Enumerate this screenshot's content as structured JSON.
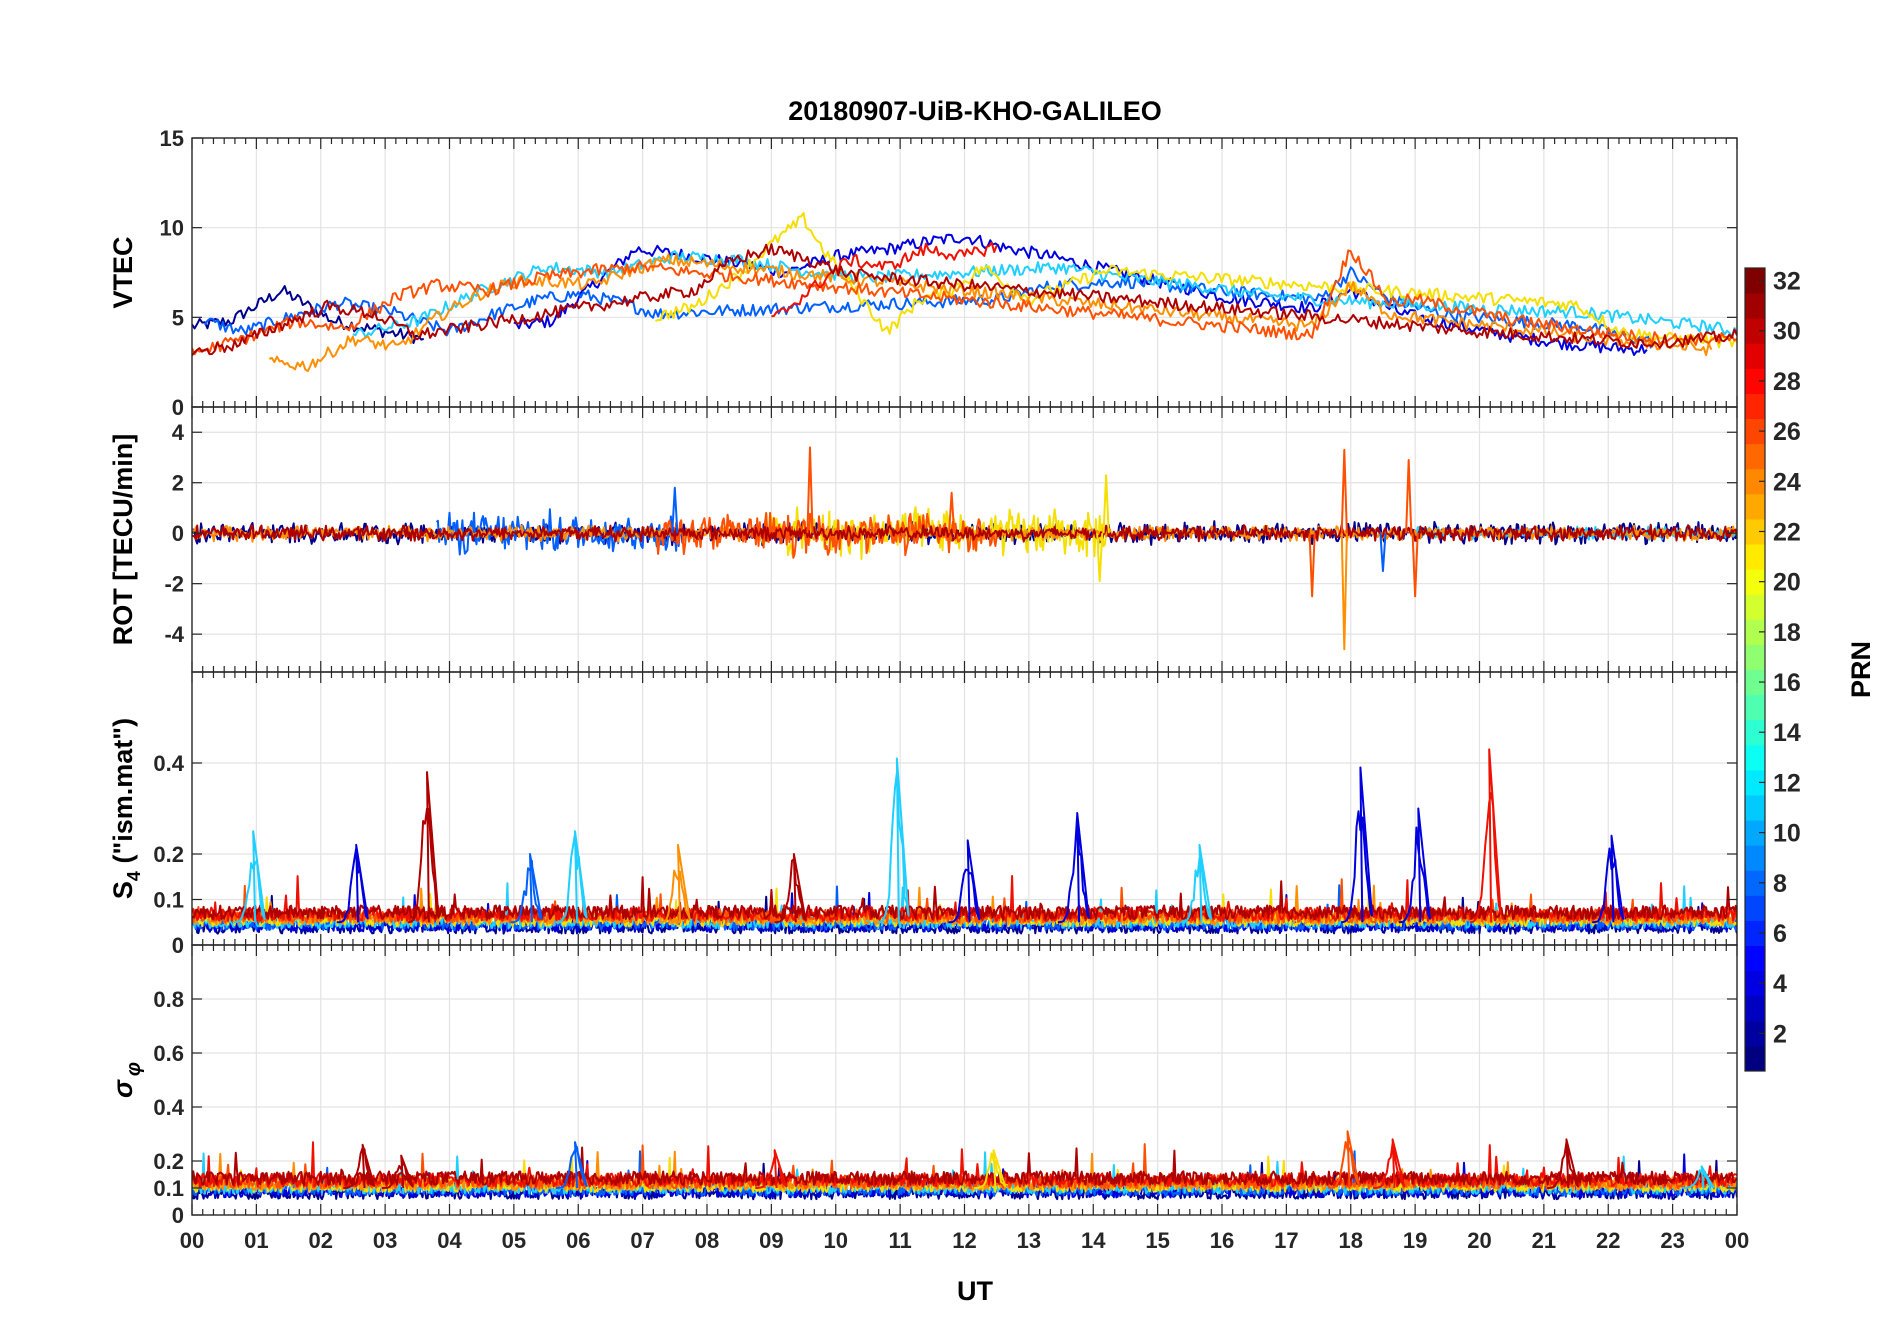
{
  "chart_data": {
    "type": "line",
    "title": "20180907-UiB-KHO-GALILEO",
    "xlabel": "UT",
    "x_ticks": [
      "00",
      "01",
      "02",
      "03",
      "04",
      "05",
      "06",
      "07",
      "08",
      "09",
      "10",
      "11",
      "12",
      "13",
      "14",
      "15",
      "16",
      "17",
      "18",
      "19",
      "20",
      "21",
      "22",
      "23",
      "00"
    ],
    "xlim": [
      0,
      24
    ],
    "grid": true,
    "panels": [
      {
        "ylabel": "VTEC",
        "ylim": [
          0,
          15
        ],
        "yticks": [
          0,
          5,
          10,
          15
        ],
        "series": [
          {
            "prn": 2,
            "color": "#00008f",
            "x": [
              0.0,
              0.6,
              1.4,
              2.2,
              3.0,
              3.6
            ],
            "y": [
              4.5,
              4.8,
              6.5,
              4.8,
              4.2,
              3.8
            ]
          },
          {
            "prn": 4,
            "color": "#0000df",
            "x": [
              5.0,
              5.6,
              6.3,
              6.9,
              7.6,
              8.5,
              9.2,
              10.0,
              10.8,
              11.4,
              12.0,
              12.6,
              13.2,
              13.8,
              14.4,
              15.0,
              15.6,
              16.2,
              16.8,
              17.4,
              18.0,
              18.8,
              19.6,
              20.4,
              21.2,
              22.0,
              22.6
            ],
            "y": [
              4.5,
              4.8,
              7.0,
              8.8,
              8.5,
              8.0,
              7.5,
              8.4,
              8.8,
              9.2,
              9.5,
              8.9,
              8.5,
              8.0,
              7.5,
              7.0,
              6.5,
              6.0,
              5.8,
              5.5,
              6.5,
              5.2,
              4.6,
              4.0,
              3.6,
              3.3,
              3.2
            ]
          },
          {
            "prn": 9,
            "color": "#005fff",
            "x": [
              0.2,
              0.8,
              1.5,
              2.3,
              3.1,
              4.0,
              4.7,
              5.4,
              6.0,
              6.7,
              7.2,
              12.5,
              13.4,
              14.5,
              15.6,
              16.5,
              17.5,
              18.0,
              18.6,
              19.4,
              20.5,
              21.6,
              22.7
            ],
            "y": [
              4.8,
              4.2,
              5.0,
              5.8,
              5.3,
              4.2,
              5.2,
              6.0,
              6.3,
              5.8,
              5.2,
              6.0,
              6.8,
              7.0,
              6.6,
              6.3,
              6.0,
              7.5,
              6.0,
              5.2,
              4.8,
              4.5,
              3.6
            ]
          },
          {
            "prn": 13,
            "color": "#1fcfff",
            "x": [
              2.5,
              3.5,
              4.5,
              5.5,
              6.5,
              7.5,
              8.5,
              9.5,
              10.5,
              11.5,
              12.5,
              13.5,
              14.5,
              15.5,
              16.5,
              17.5,
              18.5,
              19.5,
              20.5,
              21.5,
              22.5,
              23.5,
              24.0
            ],
            "y": [
              4.0,
              4.8,
              6.5,
              7.8,
              7.5,
              8.4,
              8.2,
              7.6,
              7.2,
              7.4,
              7.6,
              7.8,
              7.2,
              6.8,
              6.3,
              6.0,
              5.8,
              5.6,
              5.4,
              5.3,
              4.9,
              4.5,
              4.2
            ]
          },
          {
            "prn": 20,
            "color": "#f5df00",
            "x": [
              7.2,
              7.8,
              8.5,
              9.1,
              9.5,
              9.8,
              10.8,
              11.3,
              11.8,
              12.3,
              13.0,
              13.6,
              14.2,
              21.5,
              22.2,
              23.0,
              24.0
            ],
            "y": [
              5.0,
              5.6,
              7.4,
              9.4,
              10.5,
              8.8,
              4.2,
              6.0,
              6.5,
              7.8,
              6.0,
              6.8,
              7.6,
              5.7,
              4.2,
              3.8,
              3.6
            ]
          },
          {
            "prn": 24,
            "color": "#ff8f00",
            "x": [
              1.2,
              1.8,
              2.5,
              3.2,
              3.8,
              4.4,
              5.0,
              5.6,
              6.2,
              6.8,
              7.4,
              17.4,
              18.0,
              18.6,
              19.4,
              20.2,
              21.0,
              21.8,
              22.8,
              23.6
            ],
            "y": [
              2.5,
              2.3,
              3.8,
              3.3,
              5.0,
              6.2,
              7.0,
              7.0,
              6.8,
              7.6,
              8.2,
              4.5,
              6.8,
              5.2,
              4.8,
              4.5,
              4.2,
              3.8,
              3.5,
              3.2
            ]
          },
          {
            "prn": 26,
            "color": "#ff4f00",
            "x": [
              0.0,
              0.8,
              1.6,
              2.4,
              3.2,
              3.8,
              4.6,
              5.4,
              6.2,
              7.0,
              17.4,
              18.0,
              18.6,
              19.0,
              19.8,
              20.6,
              21.4,
              22.2,
              23.0,
              24.0
            ],
            "y": [
              3.0,
              3.8,
              4.8,
              4.4,
              6.2,
              6.8,
              6.5,
              7.2,
              7.6,
              7.8,
              4.0,
              8.8,
              5.8,
              6.0,
              5.4,
              4.8,
              4.4,
              4.0,
              3.8,
              3.8
            ]
          },
          {
            "prn": 28,
            "color": "#ef1000",
            "x": [
              9.0,
              9.6,
              10.2,
              10.8,
              11.4,
              12.0,
              12.5
            ],
            "y": [
              4.8,
              6.5,
              8.2,
              7.8,
              8.8,
              8.4,
              9.0
            ]
          },
          {
            "prn": 31,
            "color": "#af0000",
            "x": [
              0.0,
              0.7,
              1.4,
              2.1,
              2.8,
              3.5,
              7.2,
              7.8,
              8.4,
              9.0,
              9.6,
              10.2,
              10.8,
              20.0,
              20.8,
              21.6,
              22.4,
              23.2,
              24.0
            ],
            "y": [
              3.0,
              3.5,
              4.6,
              5.6,
              5.2,
              4.0,
              6.2,
              6.5,
              8.2,
              8.8,
              8.2,
              7.4,
              7.2,
              4.2,
              4.0,
              3.8,
              3.6,
              3.7,
              4.0
            ]
          }
        ]
      },
      {
        "ylabel": "ROT [TECU/min]",
        "ylim": [
          -5.5,
          5
        ],
        "yticks": [
          -4,
          -2,
          0,
          2,
          4
        ],
        "noise_segments": [
          {
            "prn": 2,
            "color": "#00008f",
            "x": [
              0.0,
              24.0
            ],
            "amplitude": 0.35
          },
          {
            "prn": 9,
            "color": "#005fff",
            "x": [
              3.8,
              7.6
            ],
            "amplitude": 0.7
          },
          {
            "prn": 13,
            "color": "#1fcfff",
            "x": [
              19.0,
              24.0
            ],
            "amplitude": 0.2
          },
          {
            "prn": 20,
            "color": "#f5df00",
            "x": [
              8.8,
              14.2
            ],
            "amplitude": 0.8
          },
          {
            "prn": 24,
            "color": "#ff8f00",
            "x": [
              0.0,
              24.0
            ],
            "amplitude": 0.25
          },
          {
            "prn": 26,
            "color": "#ff4f00",
            "x": [
              7.2,
              12.5
            ],
            "amplitude": 0.7
          },
          {
            "prn": 31,
            "color": "#af0000",
            "x": [
              0.0,
              24.0
            ],
            "amplitude": 0.25
          }
        ],
        "spikes": [
          {
            "x": 7.5,
            "y": 1.8,
            "color": "#005fff"
          },
          {
            "x": 9.6,
            "y": 3.4,
            "color": "#ff4f00"
          },
          {
            "x": 11.8,
            "y": 1.6,
            "color": "#ff4f00"
          },
          {
            "x": 14.2,
            "y": 2.3,
            "color": "#f5df00"
          },
          {
            "x": 14.1,
            "y": -1.9,
            "color": "#f5df00"
          },
          {
            "x": 17.4,
            "y": -2.5,
            "color": "#ff4f00"
          },
          {
            "x": 17.9,
            "y": 3.3,
            "color": "#ff4f00"
          },
          {
            "x": 17.9,
            "y": -4.6,
            "color": "#ff8f00"
          },
          {
            "x": 18.5,
            "y": -1.5,
            "color": "#005fff"
          },
          {
            "x": 18.9,
            "y": 2.9,
            "color": "#ff4f00"
          },
          {
            "x": 19.0,
            "y": -2.5,
            "color": "#ff4f00"
          }
        ]
      },
      {
        "ylabel": "S4 (\"ism.mat\")",
        "ylabel_parts": [
          "S",
          "4",
          " (\"ism.mat\")"
        ],
        "ylim": [
          0,
          0.6
        ],
        "yticks": [
          0,
          0.1,
          0.2,
          0.4
        ],
        "ytick_labels": [
          "0",
          "0.1",
          "0.2",
          "0.4"
        ],
        "baseline": 0.05,
        "bursts": [
          {
            "x": 0.9,
            "y": 0.25,
            "color": "#1fcfff"
          },
          {
            "x": 2.5,
            "y": 0.22,
            "color": "#0000df"
          },
          {
            "x": 3.6,
            "y": 0.38,
            "color": "#af0000"
          },
          {
            "x": 5.2,
            "y": 0.2,
            "color": "#005fff"
          },
          {
            "x": 5.9,
            "y": 0.25,
            "color": "#1fcfff"
          },
          {
            "x": 7.5,
            "y": 0.22,
            "color": "#ff8f00"
          },
          {
            "x": 9.3,
            "y": 0.2,
            "color": "#af0000"
          },
          {
            "x": 10.9,
            "y": 0.41,
            "color": "#1fcfff"
          },
          {
            "x": 12.0,
            "y": 0.23,
            "color": "#0000df"
          },
          {
            "x": 13.7,
            "y": 0.29,
            "color": "#0000df"
          },
          {
            "x": 15.6,
            "y": 0.22,
            "color": "#1fcfff"
          },
          {
            "x": 18.1,
            "y": 0.39,
            "color": "#0000df"
          },
          {
            "x": 19.0,
            "y": 0.3,
            "color": "#0000df"
          },
          {
            "x": 20.1,
            "y": 0.43,
            "color": "#ef1000"
          },
          {
            "x": 22.0,
            "y": 0.24,
            "color": "#0000df"
          }
        ]
      },
      {
        "ylabel": "σ φ",
        "ylabel_parts": [
          "σ",
          "φ"
        ],
        "ylim": [
          0,
          1
        ],
        "yticks": [
          0,
          0.1,
          0.2,
          0.4,
          0.6,
          0.8
        ],
        "ytick_labels": [
          "0",
          "0.1",
          "0.2",
          "0.4",
          "0.6",
          "0.8"
        ],
        "baseline": 0.1,
        "bursts": [
          {
            "x": 2.6,
            "y": 0.26,
            "color": "#af0000"
          },
          {
            "x": 3.2,
            "y": 0.22,
            "color": "#af0000"
          },
          {
            "x": 5.9,
            "y": 0.27,
            "color": "#005fff"
          },
          {
            "x": 9.0,
            "y": 0.24,
            "color": "#ef1000"
          },
          {
            "x": 12.4,
            "y": 0.24,
            "color": "#f5df00"
          },
          {
            "x": 17.9,
            "y": 0.31,
            "color": "#ff4f00"
          },
          {
            "x": 18.6,
            "y": 0.28,
            "color": "#ef1000"
          },
          {
            "x": 21.3,
            "y": 0.28,
            "color": "#af0000"
          },
          {
            "x": 23.4,
            "y": 0.18,
            "color": "#1fcfff"
          }
        ]
      }
    ],
    "colorbar": {
      "label": "PRN",
      "range": [
        1,
        32
      ],
      "ticks": [
        2,
        4,
        6,
        8,
        10,
        12,
        14,
        16,
        18,
        20,
        22,
        24,
        26,
        28,
        30,
        32
      ],
      "colormap": "jet"
    }
  }
}
